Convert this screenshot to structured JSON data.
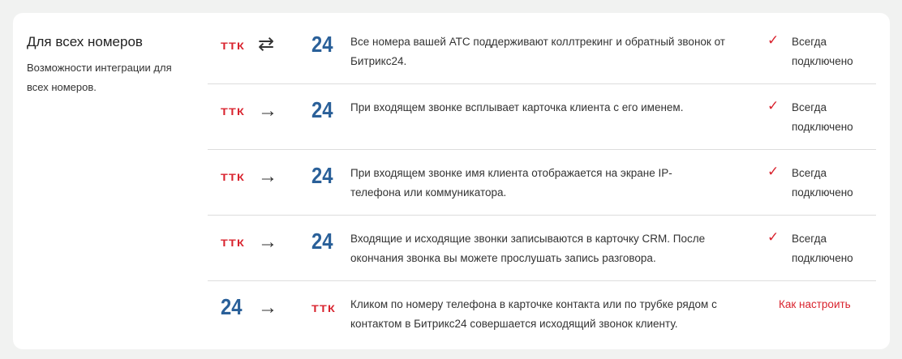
{
  "section": {
    "title": "Для всех номеров",
    "description": "Возможности интеграции для всех номеров."
  },
  "logos": {
    "ttk": "ТТК",
    "bitrix": "24"
  },
  "colors": {
    "accent": "#d9232e",
    "bitrix": "#2a6099",
    "background": "#f1f2f1"
  },
  "rows": [
    {
      "direction": "bidirectional",
      "text": "Все номера вашей АТС поддерживают коллтрекинг и обратный звонок от Битрикс24.",
      "status": "Всегда подключено"
    },
    {
      "direction": "ttk-to-bitrix",
      "text": "При входящем звонке всплывает карточка клиента с его именем.",
      "status": "Всегда подключено"
    },
    {
      "direction": "ttk-to-bitrix",
      "text": "При входящем звонке имя клиента отображается на экране IP-телефона или коммуникатора.",
      "status": "Всегда подключено"
    },
    {
      "direction": "ttk-to-bitrix",
      "text": "Входящие и исходящие звонки записываются в карточку CRM. После окончания звонка вы можете прослушать запись разговора.",
      "status": "Всегда подключено"
    },
    {
      "direction": "bitrix-to-ttk",
      "text": "Кликом по номеру телефона в карточке контакта или по трубке рядом с контактом в Битрикс24 совершается исходящий звонок клиенту.",
      "link": "Как настроить"
    }
  ],
  "icons": {
    "bidirectional": "⇄",
    "arrow": "→",
    "check": "✓"
  }
}
